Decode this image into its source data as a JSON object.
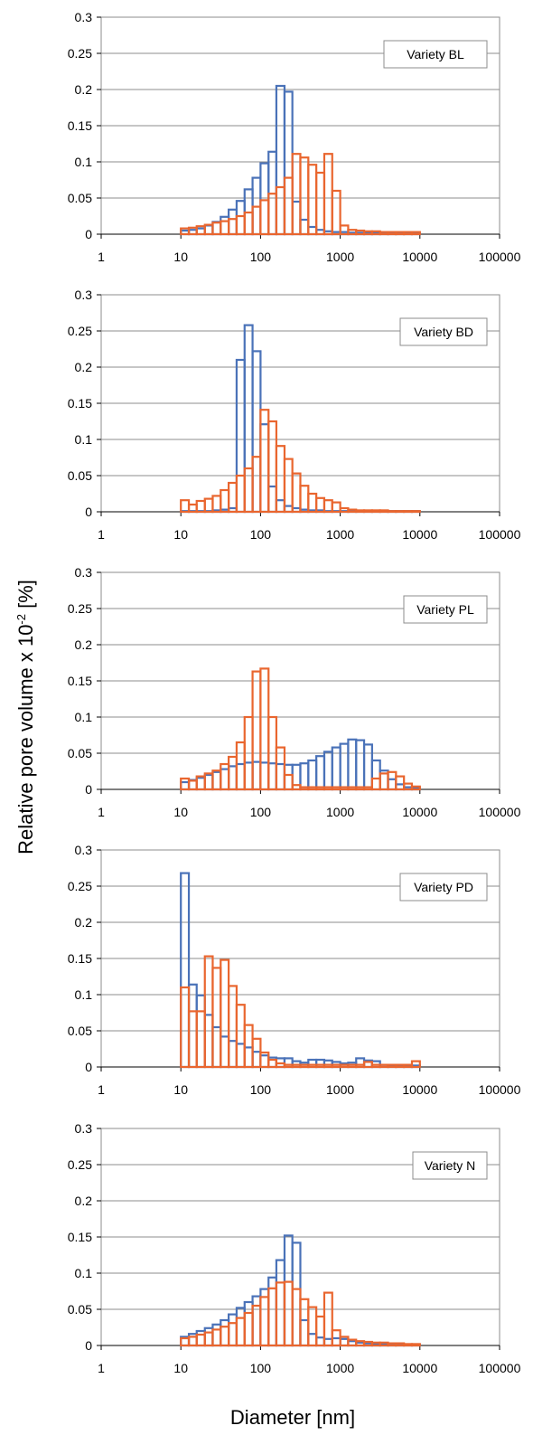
{
  "chart_data": [
    {
      "type": "bar",
      "label": "Variety BL",
      "x_scale": "log",
      "xlim": [
        1,
        100000
      ],
      "ylim": [
        0,
        0.3
      ],
      "y_ticks": [
        "0",
        "0.05",
        "0.1",
        "0.15",
        "0.2",
        "0.25",
        "0.3"
      ],
      "x_ticks": [
        "1",
        "10",
        "100",
        "1000",
        "10000",
        "100000"
      ],
      "bin_edges": [
        10,
        12.6,
        15.8,
        20,
        25.1,
        31.6,
        39.8,
        50.1,
        63.1,
        79.4,
        100,
        126,
        158,
        200,
        251,
        316,
        398,
        501,
        631,
        794,
        1000,
        1259,
        1585,
        1995,
        2512,
        3162,
        3981,
        5012,
        6310,
        7943,
        10000
      ],
      "series": [
        {
          "color": "#4a72b8",
          "values": [
            0.005,
            0.006,
            0.008,
            0.012,
            0.017,
            0.024,
            0.034,
            0.046,
            0.062,
            0.078,
            0.098,
            0.114,
            0.205,
            0.197,
            0.045,
            0.02,
            0.01,
            0.006,
            0.004,
            0.003,
            0.003,
            0.002,
            0.002,
            0.002,
            0.002,
            0.001,
            0.001,
            0.001,
            0.001,
            0.001
          ]
        },
        {
          "color": "#e9662f",
          "values": [
            0.008,
            0.009,
            0.011,
            0.013,
            0.016,
            0.018,
            0.021,
            0.025,
            0.03,
            0.038,
            0.047,
            0.056,
            0.065,
            0.078,
            0.111,
            0.106,
            0.096,
            0.085,
            0.111,
            0.06,
            0.012,
            0.006,
            0.005,
            0.004,
            0.004,
            0.003,
            0.003,
            0.003,
            0.003,
            0.003
          ]
        }
      ]
    },
    {
      "type": "bar",
      "label": "Variety BD",
      "x_scale": "log",
      "xlim": [
        1,
        100000
      ],
      "ylim": [
        0,
        0.3
      ],
      "y_ticks": [
        "0",
        "0.05",
        "0.1",
        "0.15",
        "0.2",
        "0.25",
        "0.3"
      ],
      "x_ticks": [
        "1",
        "10",
        "100",
        "1000",
        "10000",
        "100000"
      ],
      "bin_edges": [
        10,
        12.6,
        15.8,
        20,
        25.1,
        31.6,
        39.8,
        50.1,
        63.1,
        79.4,
        100,
        126,
        158,
        200,
        251,
        316,
        398,
        501,
        631,
        794,
        1000,
        1259,
        1585,
        1995,
        2512,
        3162,
        3981,
        5012,
        6310,
        7943,
        10000
      ],
      "series": [
        {
          "color": "#4a72b8",
          "values": [
            0.001,
            0.001,
            0.001,
            0.001,
            0.002,
            0.003,
            0.005,
            0.21,
            0.258,
            0.222,
            0.121,
            0.035,
            0.016,
            0.008,
            0.005,
            0.003,
            0.002,
            0.002,
            0.001,
            0.001,
            0.001,
            0.001,
            0.001,
            0.001,
            0.001,
            0.001,
            0.001,
            0.001,
            0.001,
            0.001
          ]
        },
        {
          "color": "#e9662f",
          "values": [
            0.016,
            0.01,
            0.015,
            0.018,
            0.022,
            0.03,
            0.04,
            0.05,
            0.06,
            0.076,
            0.141,
            0.125,
            0.091,
            0.073,
            0.053,
            0.036,
            0.025,
            0.019,
            0.016,
            0.013,
            0.005,
            0.003,
            0.002,
            0.002,
            0.002,
            0.002,
            0.001,
            0.001,
            0.001,
            0.001
          ]
        }
      ]
    },
    {
      "type": "bar",
      "label": "Variety PL",
      "x_scale": "log",
      "xlim": [
        1,
        100000
      ],
      "ylim": [
        0,
        0.3
      ],
      "y_ticks": [
        "0",
        "0.05",
        "0.1",
        "0.15",
        "0.2",
        "0.25",
        "0.3"
      ],
      "x_ticks": [
        "1",
        "10",
        "100",
        "1000",
        "10000",
        "100000"
      ],
      "bin_edges": [
        10,
        12.6,
        15.8,
        20,
        25.1,
        31.6,
        39.8,
        50.1,
        63.1,
        79.4,
        100,
        126,
        158,
        200,
        251,
        316,
        398,
        501,
        631,
        794,
        1000,
        1259,
        1585,
        1995,
        2512,
        3162,
        3981,
        5012,
        6310,
        7943,
        10000
      ],
      "series": [
        {
          "color": "#4a72b8",
          "values": [
            0.01,
            0.013,
            0.016,
            0.02,
            0.024,
            0.028,
            0.032,
            0.035,
            0.037,
            0.038,
            0.037,
            0.036,
            0.035,
            0.034,
            0.034,
            0.036,
            0.04,
            0.046,
            0.052,
            0.058,
            0.063,
            0.069,
            0.068,
            0.062,
            0.04,
            0.026,
            0.014,
            0.007,
            0.003,
            0.002
          ]
        },
        {
          "color": "#e9662f",
          "values": [
            0.015,
            0.012,
            0.018,
            0.022,
            0.026,
            0.035,
            0.045,
            0.065,
            0.1,
            0.163,
            0.167,
            0.1,
            0.058,
            0.02,
            0.006,
            0.003,
            0.003,
            0.003,
            0.003,
            0.003,
            0.003,
            0.003,
            0.003,
            0.003,
            0.015,
            0.022,
            0.024,
            0.018,
            0.008,
            0.004
          ]
        }
      ]
    },
    {
      "type": "bar",
      "label": "Variety PD",
      "x_scale": "log",
      "xlim": [
        1,
        100000
      ],
      "ylim": [
        0,
        0.3
      ],
      "y_ticks": [
        "0",
        "0.05",
        "0.1",
        "0.15",
        "0.2",
        "0.25",
        "0.3"
      ],
      "x_ticks": [
        "1",
        "10",
        "100",
        "1000",
        "10000",
        "100000"
      ],
      "bin_edges": [
        10,
        12.6,
        15.8,
        20,
        25.1,
        31.6,
        39.8,
        50.1,
        63.1,
        79.4,
        100,
        126,
        158,
        200,
        251,
        316,
        398,
        501,
        631,
        794,
        1000,
        1259,
        1585,
        1995,
        2512,
        3162,
        3981,
        5012,
        6310,
        7943,
        10000
      ],
      "series": [
        {
          "color": "#4a72b8",
          "values": [
            0.268,
            0.114,
            0.099,
            0.072,
            0.055,
            0.042,
            0.036,
            0.032,
            0.027,
            0.021,
            0.016,
            0.013,
            0.012,
            0.012,
            0.008,
            0.006,
            0.01,
            0.01,
            0.009,
            0.007,
            0.005,
            0.006,
            0.012,
            0.009,
            0.008,
            0.003,
            0.002,
            0.002,
            0.002,
            0.002
          ]
        },
        {
          "color": "#e9662f",
          "values": [
            0.11,
            0.077,
            0.077,
            0.153,
            0.137,
            0.148,
            0.112,
            0.086,
            0.058,
            0.039,
            0.02,
            0.01,
            0.005,
            0.003,
            0.003,
            0.003,
            0.003,
            0.003,
            0.003,
            0.003,
            0.003,
            0.003,
            0.003,
            0.007,
            0.003,
            0.003,
            0.003,
            0.003,
            0.003,
            0.008
          ]
        }
      ]
    },
    {
      "type": "bar",
      "label": "Variety N",
      "x_scale": "log",
      "xlim": [
        1,
        100000
      ],
      "ylim": [
        0,
        0.3
      ],
      "y_ticks": [
        "0",
        "0.05",
        "0.1",
        "0.15",
        "0.2",
        "0.25",
        "0.3"
      ],
      "x_ticks": [
        "1",
        "10",
        "100",
        "1000",
        "10000",
        "100000"
      ],
      "bin_edges": [
        10,
        12.6,
        15.8,
        20,
        25.1,
        31.6,
        39.8,
        50.1,
        63.1,
        79.4,
        100,
        126,
        158,
        200,
        251,
        316,
        398,
        501,
        631,
        794,
        1000,
        1259,
        1585,
        1995,
        2512,
        3162,
        3981,
        5012,
        6310,
        7943,
        10000
      ],
      "series": [
        {
          "color": "#4a72b8",
          "values": [
            0.012,
            0.016,
            0.02,
            0.024,
            0.029,
            0.035,
            0.043,
            0.052,
            0.06,
            0.068,
            0.078,
            0.094,
            0.118,
            0.152,
            0.142,
            0.035,
            0.016,
            0.011,
            0.009,
            0.01,
            0.009,
            0.006,
            0.004,
            0.003,
            0.002,
            0.002,
            0.001,
            0.001,
            0.001,
            0.001
          ]
        },
        {
          "color": "#e9662f",
          "values": [
            0.01,
            0.012,
            0.015,
            0.018,
            0.022,
            0.026,
            0.031,
            0.038,
            0.045,
            0.055,
            0.067,
            0.079,
            0.087,
            0.088,
            0.078,
            0.064,
            0.053,
            0.04,
            0.073,
            0.021,
            0.012,
            0.008,
            0.006,
            0.005,
            0.004,
            0.004,
            0.003,
            0.003,
            0.002,
            0.002
          ]
        }
      ]
    }
  ],
  "y_axis_title": "Relative pore volume x 10",
  "y_axis_exponent": "-2",
  "y_axis_unit": "[%]",
  "x_axis_title": "Diameter [nm]"
}
